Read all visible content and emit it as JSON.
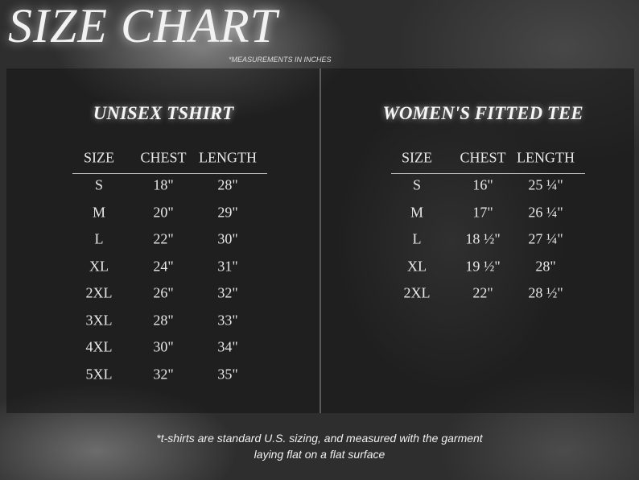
{
  "title": "SIZE CHART",
  "units_note": "*MEASUREMENTS IN INCHES",
  "tables": [
    {
      "title": "UNISEX TSHIRT",
      "headers": [
        "SIZE",
        "CHEST",
        "LENGTH"
      ],
      "rows": [
        [
          "S",
          "18\"",
          "28\""
        ],
        [
          "M",
          "20\"",
          "29\""
        ],
        [
          "L",
          "22\"",
          "30\""
        ],
        [
          "XL",
          "24\"",
          "31\""
        ],
        [
          "2XL",
          "26\"",
          "32\""
        ],
        [
          "3XL",
          "28\"",
          "33\""
        ],
        [
          "4XL",
          "30\"",
          "34\""
        ],
        [
          "5XL",
          "32\"",
          "35\""
        ]
      ]
    },
    {
      "title": "WOMEN'S FITTED TEE",
      "headers": [
        "SIZE",
        "CHEST",
        "LENGTH"
      ],
      "rows": [
        [
          "S",
          "16\"",
          "25 ¼\""
        ],
        [
          "M",
          "17\"",
          "26 ¼\""
        ],
        [
          "L",
          "18 ½\"",
          "27 ¼\""
        ],
        [
          "XL",
          "19 ½\"",
          "28\""
        ],
        [
          "2XL",
          "22\"",
          "28 ½\""
        ]
      ]
    }
  ],
  "footnote": {
    "line1": "*t-shirts are standard U.S. sizing, and measured with the garment",
    "line2": "laying flat on a flat surface"
  }
}
